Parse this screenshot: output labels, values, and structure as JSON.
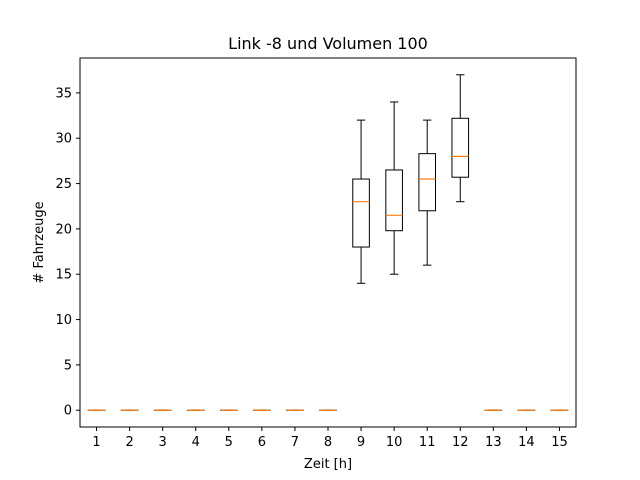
{
  "chart_data": {
    "type": "boxplot",
    "title": "Link -8 und Volumen 100",
    "xlabel": "Zeit [h]",
    "ylabel": "# Fahrzeuge",
    "ylim": [
      -1.85,
      38.85
    ],
    "yticks": [
      0,
      5,
      10,
      15,
      20,
      25,
      30,
      35
    ],
    "grid": false,
    "categories": [
      "1",
      "2",
      "3",
      "4",
      "5",
      "6",
      "7",
      "8",
      "9",
      "10",
      "11",
      "12",
      "13",
      "14",
      "15"
    ],
    "boxes": [
      {
        "x": "1",
        "whisker_low": 0,
        "q1": 0,
        "median": 0,
        "q3": 0,
        "whisker_high": 0
      },
      {
        "x": "2",
        "whisker_low": 0,
        "q1": 0,
        "median": 0,
        "q3": 0,
        "whisker_high": 0
      },
      {
        "x": "3",
        "whisker_low": 0,
        "q1": 0,
        "median": 0,
        "q3": 0,
        "whisker_high": 0
      },
      {
        "x": "4",
        "whisker_low": 0,
        "q1": 0,
        "median": 0,
        "q3": 0,
        "whisker_high": 0
      },
      {
        "x": "5",
        "whisker_low": 0,
        "q1": 0,
        "median": 0,
        "q3": 0,
        "whisker_high": 0
      },
      {
        "x": "6",
        "whisker_low": 0,
        "q1": 0,
        "median": 0,
        "q3": 0,
        "whisker_high": 0
      },
      {
        "x": "7",
        "whisker_low": 0,
        "q1": 0,
        "median": 0,
        "q3": 0,
        "whisker_high": 0
      },
      {
        "x": "8",
        "whisker_low": 0,
        "q1": 0,
        "median": 0,
        "q3": 0,
        "whisker_high": 0
      },
      {
        "x": "9",
        "whisker_low": 14,
        "q1": 18,
        "median": 23,
        "q3": 25.5,
        "whisker_high": 32
      },
      {
        "x": "10",
        "whisker_low": 15,
        "q1": 19.8,
        "median": 21.5,
        "q3": 26.5,
        "whisker_high": 34
      },
      {
        "x": "11",
        "whisker_low": 16,
        "q1": 22,
        "median": 25.5,
        "q3": 28.3,
        "whisker_high": 32
      },
      {
        "x": "12",
        "whisker_low": 23,
        "q1": 25.7,
        "median": 28,
        "q3": 32.2,
        "whisker_high": 37
      },
      {
        "x": "13",
        "whisker_low": 0,
        "q1": 0,
        "median": 0,
        "q3": 0,
        "whisker_high": 0
      },
      {
        "x": "14",
        "whisker_low": 0,
        "q1": 0,
        "median": 0,
        "q3": 0,
        "whisker_high": 0
      },
      {
        "x": "15",
        "whisker_low": 0,
        "q1": 0,
        "median": 0,
        "q3": 0,
        "whisker_high": 0
      }
    ],
    "colors": {
      "box": "#000000",
      "median": "#ff7f0e",
      "axes": "#000000",
      "background": "#ffffff"
    }
  }
}
